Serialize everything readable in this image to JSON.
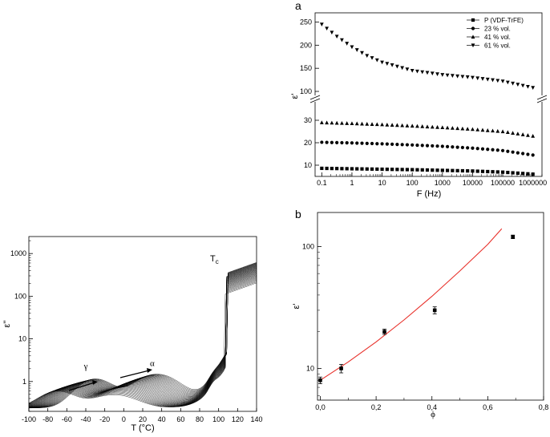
{
  "chart_data": [
    {
      "id": "loss",
      "type": "line",
      "xlabel": "T (°C)",
      "ylabel": "ε''",
      "xscale": "linear",
      "yscale": "log",
      "xlim": [
        -100,
        140
      ],
      "ylim": [
        0.2,
        2500
      ],
      "xticks": [
        "-100",
        "-80",
        "-60",
        "-40",
        "-20",
        "0",
        "20",
        "40",
        "60",
        "80",
        "100",
        "120",
        "140"
      ],
      "yticks": [
        {
          "v": 1,
          "label": "1"
        },
        {
          "v": 10,
          "label": "10"
        },
        {
          "v": 100,
          "label": "100"
        },
        {
          "v": 1000,
          "label": "1000"
        }
      ],
      "curve_count": 40,
      "annotations": [
        {
          "text": "γ",
          "x": -40,
          "y": 2.0
        },
        {
          "text": "α",
          "x": 30,
          "y": 2.3
        },
        {
          "text": "T",
          "sub": "c",
          "x": 91,
          "y": 650
        }
      ]
    },
    {
      "id": "a",
      "panel_label": "a",
      "type": "scatter",
      "xlabel": "F (Hz)",
      "ylabel": "ε'",
      "xscale": "log",
      "xlim": [
        0.06,
        2000000
      ],
      "y_axis_break": true,
      "ylim_lower": [
        5,
        35
      ],
      "ylim_upper": [
        100,
        270
      ],
      "xticks": [
        "0.1",
        "1",
        "10",
        "100",
        "1000",
        "10000",
        "100000",
        "1000000"
      ],
      "yticks_lower": [
        "10",
        "20",
        "30"
      ],
      "yticks_upper": [
        "100",
        "150",
        "200",
        "250"
      ],
      "legend_position": "top-right",
      "series": [
        {
          "name": "P (VDF-TrFE)",
          "marker": "square",
          "x": [
            0.1,
            1,
            10,
            100,
            1000,
            10000,
            100000,
            1000000
          ],
          "y": [
            8.6,
            8.4,
            8.2,
            8.0,
            7.7,
            7.4,
            6.9,
            6.0
          ]
        },
        {
          "name": "23 % vol.",
          "marker": "circle",
          "x": [
            0.1,
            1,
            10,
            100,
            1000,
            10000,
            100000,
            1000000
          ],
          "y": [
            20.2,
            19.9,
            19.5,
            19.0,
            18.4,
            17.6,
            16.5,
            14.5
          ]
        },
        {
          "name": "41 %  vol.",
          "marker": "triangle-up",
          "x": [
            0.1,
            1,
            10,
            100,
            1000,
            10000,
            100000,
            1000000
          ],
          "y": [
            29.0,
            28.6,
            28.1,
            27.5,
            26.8,
            26.0,
            25.0,
            23.0
          ]
        },
        {
          "name": "61 % vol.",
          "marker": "triangle-down",
          "x": [
            0.1,
            0.3,
            1,
            3,
            10,
            100,
            1000,
            10000,
            100000,
            1000000
          ],
          "y": [
            245,
            220,
            196,
            178,
            163,
            145,
            136,
            130,
            122,
            108
          ]
        }
      ]
    },
    {
      "id": "b",
      "panel_label": "b",
      "type": "scatter",
      "xlabel": "ϕ",
      "ylabel": "ε'",
      "xscale": "linear",
      "yscale": "log",
      "xlim": [
        -0.01,
        0.8
      ],
      "ylim": [
        5.5,
        190
      ],
      "xticks": [
        {
          "v": 0.0,
          "label": "0,0"
        },
        {
          "v": 0.2,
          "label": "0,2"
        },
        {
          "v": 0.4,
          "label": "0,4"
        },
        {
          "v": 0.6,
          "label": "0,6"
        },
        {
          "v": 0.8,
          "label": "0,8"
        }
      ],
      "yticks": [
        {
          "v": 10,
          "label": "10"
        },
        {
          "v": 100,
          "label": "100"
        }
      ],
      "points": [
        {
          "x": 0.0,
          "y": 8.0,
          "err": 0.5
        },
        {
          "x": 0.075,
          "y": 10.0,
          "err": 0.8
        },
        {
          "x": 0.23,
          "y": 20.0,
          "err": 1.0
        },
        {
          "x": 0.41,
          "y": 30.0,
          "err": 2.0
        },
        {
          "x": 0.69,
          "y": 120.0,
          "err": 4.0
        }
      ],
      "fit": {
        "color": "#e8302a",
        "x": [
          0.0,
          0.1,
          0.2,
          0.3,
          0.4,
          0.5,
          0.6,
          0.65
        ],
        "y": [
          8.0,
          11.3,
          16.5,
          25.0,
          39.0,
          63.0,
          104.0,
          140.0
        ]
      }
    }
  ]
}
